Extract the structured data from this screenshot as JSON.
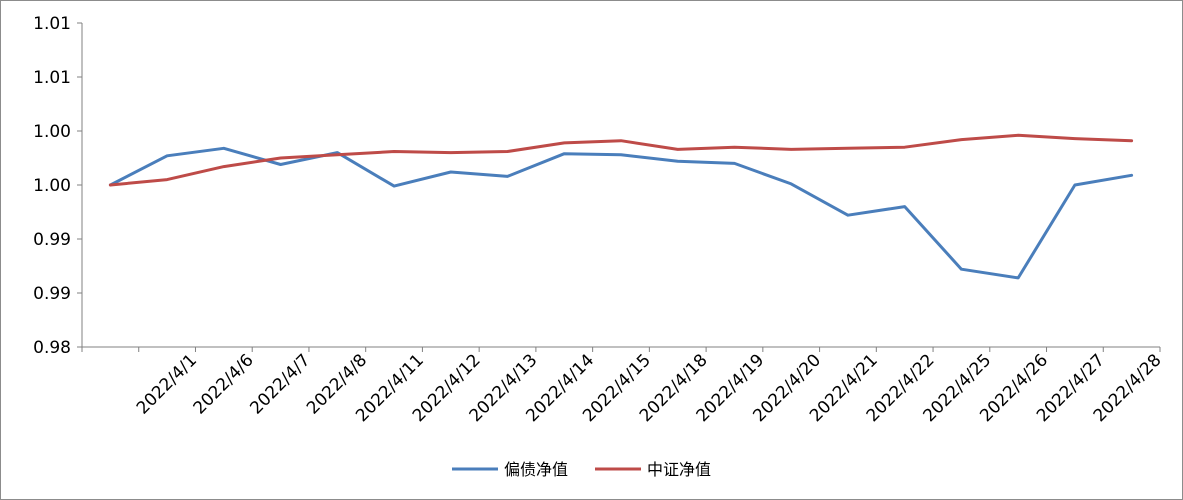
{
  "chart_data": {
    "type": "line",
    "title": "",
    "xlabel": "",
    "ylabel": "",
    "categories": [
      "",
      "2022/4/1",
      "2022/4/6",
      "2022/4/7",
      "2022/4/8",
      "2022/4/11",
      "2022/4/12",
      "2022/4/13",
      "2022/4/14",
      "2022/4/15",
      "2022/4/18",
      "2022/4/19",
      "2022/4/20",
      "2022/4/21",
      "2022/4/22",
      "2022/4/25",
      "2022/4/26",
      "2022/4/27",
      "2022/4/28"
    ],
    "ylim": [
      0.985,
      1.015
    ],
    "y_ticks": [
      0.985,
      0.99,
      0.995,
      1.0,
      1.005,
      1.01,
      1.015
    ],
    "y_tick_labels": [
      "0.98",
      "0.99",
      "0.99",
      "1.00",
      "1.00",
      "1.01",
      "1.01"
    ],
    "grid": false,
    "legend_position": "bottom",
    "series": [
      {
        "name": "偏债净值",
        "color": "#4a7ebb",
        "values": [
          1.0,
          1.0027,
          1.0034,
          1.0019,
          1.003,
          0.9999,
          1.0012,
          1.0008,
          1.0029,
          1.0028,
          1.0022,
          1.002,
          1.0001,
          0.9972,
          0.998,
          0.9922,
          0.9914,
          1.0,
          1.0009
        ]
      },
      {
        "name": "中证净值",
        "color": "#be4b48",
        "values": [
          1.0,
          1.0005,
          1.0017,
          1.0025,
          1.0028,
          1.0031,
          1.003,
          1.0031,
          1.0039,
          1.0041,
          1.0033,
          1.0035,
          1.0033,
          1.0034,
          1.0035,
          1.0042,
          1.0046,
          1.0043,
          1.0041
        ]
      }
    ]
  }
}
